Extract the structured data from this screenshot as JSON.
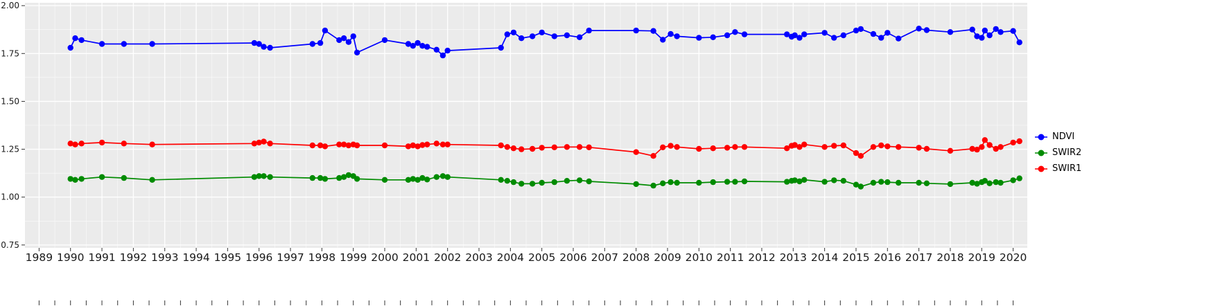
{
  "figure": {
    "background": "#FFFFFF",
    "panel_background": "#EBEBEB",
    "grid_major_color": "#FFFFFF",
    "grid_minor_color": "#FFFFFF",
    "tick_color": "#333333",
    "axis_text_color": "#1A1A1A"
  },
  "legend": {
    "position": "right",
    "items": [
      {
        "label": "NDVI",
        "color": "#0000FF"
      },
      {
        "label": "SWIR2",
        "color": "#008B00"
      },
      {
        "label": "SWIR1",
        "color": "#FF0000"
      }
    ]
  },
  "chart_data": {
    "type": "line",
    "title": "",
    "xlabel": "",
    "ylabel": "",
    "grid": true,
    "legend_position": "right",
    "xlim": [
      1988.55,
      2020.45
    ],
    "ylim": [
      0.735,
      2.015
    ],
    "x_ticks": [
      1989,
      1990,
      1991,
      1992,
      1993,
      1994,
      1995,
      1996,
      1997,
      1998,
      1999,
      2000,
      2001,
      2002,
      2003,
      2004,
      2005,
      2006,
      2007,
      2008,
      2009,
      2010,
      2011,
      2012,
      2013,
      2014,
      2015,
      2016,
      2017,
      2018,
      2019,
      2020
    ],
    "y_ticks": [
      2.0,
      1.75,
      1.5,
      1.25,
      1.0,
      0.75
    ],
    "y_tick_labels": [
      "2.00",
      "1.75",
      "1.50",
      "1.25",
      "1.00",
      "0.75"
    ],
    "x": [
      1990.0,
      1990.15,
      1990.35,
      1991.0,
      1991.7,
      1992.6,
      1995.85,
      1996.0,
      1996.15,
      1996.35,
      1997.7,
      1997.95,
      1998.1,
      1998.55,
      1998.7,
      1998.85,
      1999.0,
      1999.12,
      2000.0,
      2000.75,
      2000.9,
      2001.05,
      2001.2,
      2001.35,
      2001.65,
      2001.85,
      2002.0,
      2003.7,
      2003.9,
      2004.1,
      2004.35,
      2004.7,
      2005.0,
      2005.4,
      2005.8,
      2006.2,
      2006.5,
      2008.0,
      2008.55,
      2008.85,
      2009.1,
      2009.3,
      2010.0,
      2010.45,
      2010.9,
      2011.15,
      2011.45,
      2012.8,
      2012.95,
      2013.05,
      2013.2,
      2013.35,
      2014.0,
      2014.3,
      2014.6,
      2015.0,
      2015.15,
      2015.55,
      2015.8,
      2016.0,
      2016.35,
      2017.0,
      2017.25,
      2018.0,
      2018.7,
      2018.85,
      2019.0,
      2019.1,
      2019.25,
      2019.45,
      2019.6,
      2020.0,
      2020.2
    ],
    "series": [
      {
        "name": "NDVI",
        "color": "#0000FF",
        "values": [
          1.78,
          1.83,
          1.82,
          1.8,
          1.8,
          1.8,
          1.805,
          1.8,
          1.785,
          1.78,
          1.8,
          1.805,
          1.87,
          1.82,
          1.83,
          1.81,
          1.84,
          1.755,
          1.82,
          1.8,
          1.79,
          1.805,
          1.79,
          1.785,
          1.77,
          1.74,
          1.765,
          1.78,
          1.85,
          1.86,
          1.83,
          1.84,
          1.86,
          1.84,
          1.845,
          1.835,
          1.87,
          1.87,
          1.868,
          1.822,
          1.852,
          1.84,
          1.832,
          1.835,
          1.845,
          1.862,
          1.85,
          1.85,
          1.838,
          1.845,
          1.832,
          1.85,
          1.858,
          1.832,
          1.845,
          1.87,
          1.878,
          1.852,
          1.832,
          1.858,
          1.828,
          1.88,
          1.872,
          1.862,
          1.875,
          1.84,
          1.832,
          1.87,
          1.845,
          1.878,
          1.862,
          1.868,
          1.808
        ]
      },
      {
        "name": "SWIR2",
        "color": "#008B00",
        "values": [
          1.095,
          1.09,
          1.095,
          1.105,
          1.1,
          1.09,
          1.105,
          1.11,
          1.11,
          1.105,
          1.1,
          1.1,
          1.095,
          1.1,
          1.105,
          1.115,
          1.11,
          1.095,
          1.09,
          1.09,
          1.095,
          1.09,
          1.1,
          1.092,
          1.105,
          1.11,
          1.105,
          1.09,
          1.085,
          1.078,
          1.07,
          1.07,
          1.075,
          1.078,
          1.085,
          1.088,
          1.082,
          1.068,
          1.06,
          1.072,
          1.078,
          1.075,
          1.075,
          1.078,
          1.08,
          1.08,
          1.082,
          1.08,
          1.085,
          1.088,
          1.082,
          1.09,
          1.08,
          1.088,
          1.085,
          1.065,
          1.055,
          1.075,
          1.08,
          1.078,
          1.075,
          1.075,
          1.072,
          1.068,
          1.075,
          1.07,
          1.078,
          1.085,
          1.072,
          1.078,
          1.075,
          1.088,
          1.098
        ]
      },
      {
        "name": "SWIR1",
        "color": "#FF0000",
        "values": [
          1.28,
          1.275,
          1.28,
          1.285,
          1.28,
          1.275,
          1.28,
          1.285,
          1.29,
          1.28,
          1.27,
          1.27,
          1.265,
          1.275,
          1.275,
          1.27,
          1.275,
          1.27,
          1.27,
          1.265,
          1.27,
          1.265,
          1.272,
          1.275,
          1.28,
          1.275,
          1.275,
          1.27,
          1.262,
          1.255,
          1.25,
          1.252,
          1.258,
          1.26,
          1.262,
          1.262,
          1.26,
          1.235,
          1.215,
          1.26,
          1.268,
          1.262,
          1.252,
          1.255,
          1.258,
          1.262,
          1.262,
          1.255,
          1.268,
          1.272,
          1.262,
          1.275,
          1.262,
          1.268,
          1.27,
          1.23,
          1.215,
          1.262,
          1.27,
          1.265,
          1.262,
          1.258,
          1.252,
          1.242,
          1.252,
          1.248,
          1.262,
          1.298,
          1.272,
          1.252,
          1.262,
          1.285,
          1.292
        ]
      }
    ]
  }
}
